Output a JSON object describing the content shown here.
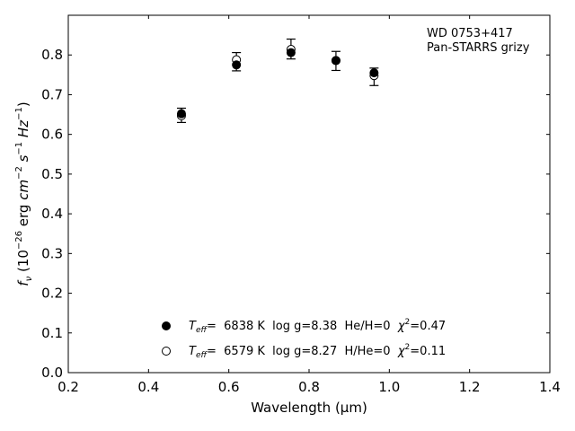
{
  "chart_data": {
    "type": "scatter",
    "xlabel": "Wavelength (μm)",
    "ylabel_parts": {
      "f": "f",
      "nu": "ν",
      "text1": " (10",
      "exp1": "−26",
      "text2": " erg ",
      "cm": "cm",
      "exp2": "−2",
      "s": " s",
      "exp3": "−1",
      "hz": " Hz",
      "exp4": "−1",
      "close": ")"
    },
    "xlim": [
      0.2,
      1.4
    ],
    "ylim": [
      0.0,
      0.9
    ],
    "xticks": [
      "0.2",
      "0.4",
      "0.6",
      "0.8",
      "1.0",
      "1.2",
      "1.4"
    ],
    "yticks": [
      "0.0",
      "0.1",
      "0.2",
      "0.3",
      "0.4",
      "0.5",
      "0.6",
      "0.7",
      "0.8"
    ],
    "annotation": [
      "WD 0753+417",
      "Pan-STARRS grizy"
    ],
    "observed": {
      "x": [
        0.482,
        0.619,
        0.755,
        0.867,
        0.962
      ],
      "y": [
        0.648,
        0.783,
        0.815,
        0.785,
        0.745
      ],
      "err": [
        0.018,
        0.023,
        0.025,
        0.024,
        0.022
      ]
    },
    "series": [
      {
        "marker": "filled",
        "x": [
          0.482,
          0.619,
          0.755,
          0.867,
          0.962
        ],
        "y": [
          0.652,
          0.775,
          0.806,
          0.786,
          0.755
        ],
        "legend": {
          "teff_symbol": "T",
          "teff_sub": "eff",
          "teff_value": "=  6838 K",
          "logg": "  log g=8.38",
          "comp": "  He/H=0",
          "chi_symbol": "  χ",
          "chi_sup": "2",
          "chi_value": "=0.47"
        }
      },
      {
        "marker": "open",
        "x": [
          0.482,
          0.619,
          0.755,
          0.867,
          0.962
        ],
        "y": [
          0.647,
          0.788,
          0.814,
          0.786,
          0.748
        ],
        "legend": {
          "teff_symbol": "T",
          "teff_sub": "eff",
          "teff_value": "=  6579 K",
          "logg": "  log g=8.27",
          "comp": "  H/He=0",
          "chi_symbol": "  χ",
          "chi_sup": "2",
          "chi_value": "=0.11"
        }
      }
    ],
    "grid": false,
    "legend_position": "bottom-center"
  }
}
